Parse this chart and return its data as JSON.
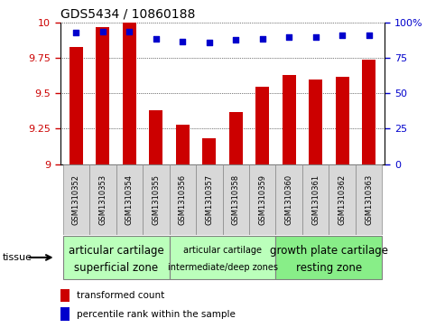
{
  "title": "GDS5434 / 10860188",
  "samples": [
    "GSM1310352",
    "GSM1310353",
    "GSM1310354",
    "GSM1310355",
    "GSM1310356",
    "GSM1310357",
    "GSM1310358",
    "GSM1310359",
    "GSM1310360",
    "GSM1310361",
    "GSM1310362",
    "GSM1310363"
  ],
  "bar_values": [
    9.83,
    9.97,
    10.0,
    9.38,
    9.28,
    9.18,
    9.37,
    9.55,
    9.63,
    9.6,
    9.62,
    9.74
  ],
  "dot_values": [
    93,
    94,
    94,
    89,
    87,
    86,
    88,
    89,
    90,
    90,
    91,
    91
  ],
  "bar_color": "#cc0000",
  "dot_color": "#0000cc",
  "ylim_left": [
    9.0,
    10.0
  ],
  "ylim_right": [
    0,
    100
  ],
  "yticks_left": [
    9.0,
    9.25,
    9.5,
    9.75,
    10.0
  ],
  "yticks_right": [
    0,
    25,
    50,
    75,
    100
  ],
  "ytick_labels_left": [
    "9",
    "9.25",
    "9.5",
    "9.75",
    "10"
  ],
  "ytick_labels_right": [
    "0",
    "25",
    "50",
    "75",
    "100%"
  ],
  "groups": [
    {
      "label": "articular cartilage\nsuperficial zone",
      "start": 0,
      "end": 3,
      "color": "#bbffbb",
      "fontsize": 8.5
    },
    {
      "label": "articular cartilage\nintermediate/deep zones",
      "start": 4,
      "end": 7,
      "color": "#bbffbb",
      "fontsize": 7.0
    },
    {
      "label": "growth plate cartilage\nresting zone",
      "start": 8,
      "end": 11,
      "color": "#88ee88",
      "fontsize": 8.5
    }
  ],
  "tissue_label": "tissue",
  "legend_bar_label": "transformed count",
  "legend_dot_label": "percentile rank within the sample",
  "bar_width": 0.5,
  "dot_size": 22,
  "background_color": "#ffffff",
  "tick_color_left": "#cc0000",
  "tick_color_right": "#0000cc",
  "xticklabel_fontsize": 6.0,
  "title_fontsize": 10
}
